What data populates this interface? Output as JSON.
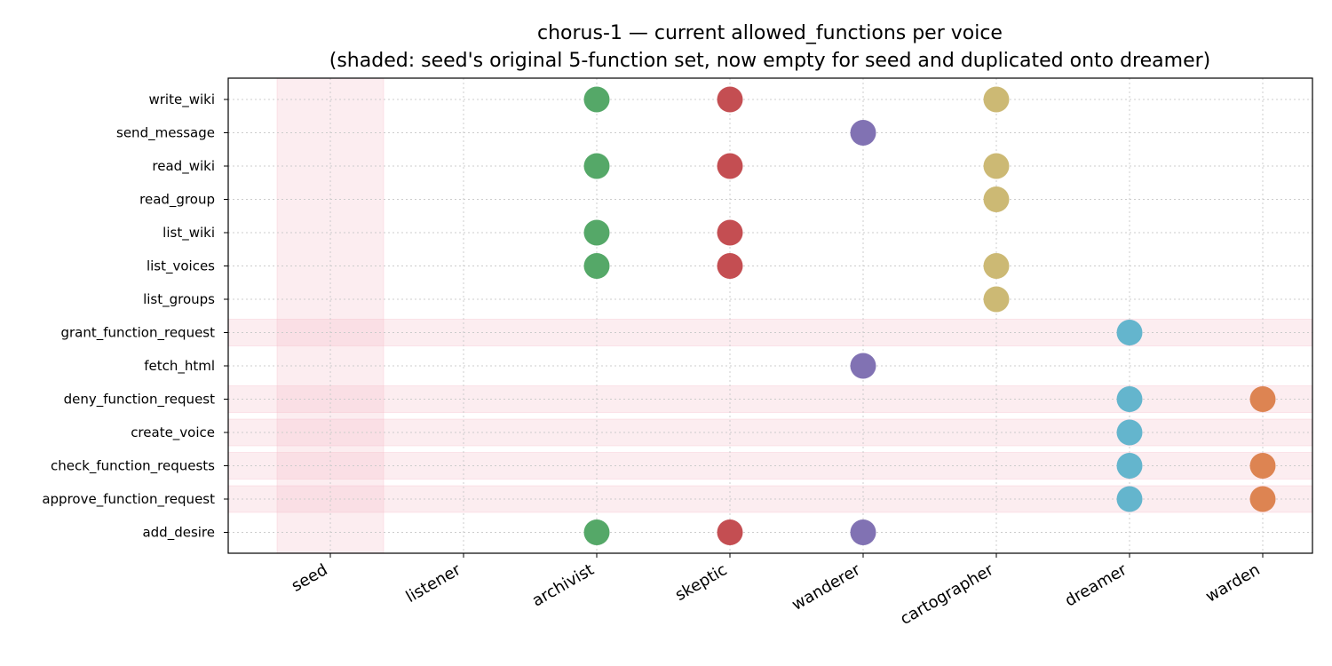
{
  "chart_data": {
    "type": "scatter",
    "title": "chorus-1 — current allowed_functions per voice",
    "subtitle": "(shaded: seed's original 5-function set, now empty for seed and duplicated onto dreamer)",
    "xlabel": "",
    "ylabel": "",
    "x_categories": [
      "seed",
      "listener",
      "archivist",
      "skeptic",
      "wanderer",
      "cartographer",
      "dreamer",
      "warden"
    ],
    "y_categories": [
      "write_wiki",
      "send_message",
      "read_wiki",
      "read_group",
      "list_wiki",
      "list_voices",
      "list_groups",
      "grant_function_request",
      "fetch_html",
      "deny_function_request",
      "create_voice",
      "check_function_requests",
      "approve_function_request",
      "add_desire"
    ],
    "grid": true,
    "shaded_column": "seed",
    "shaded_rows": [
      "grant_function_request",
      "deny_function_request",
      "create_voice",
      "check_function_requests",
      "approve_function_request"
    ],
    "shade_color": "#f4b6c2",
    "series": [
      {
        "voice": "archivist",
        "color": "#55a868",
        "functions": [
          "write_wiki",
          "read_wiki",
          "list_wiki",
          "list_voices",
          "add_desire"
        ]
      },
      {
        "voice": "skeptic",
        "color": "#c44e52",
        "functions": [
          "write_wiki",
          "read_wiki",
          "list_wiki",
          "list_voices",
          "add_desire"
        ]
      },
      {
        "voice": "wanderer",
        "color": "#8172b3",
        "functions": [
          "send_message",
          "fetch_html",
          "add_desire"
        ]
      },
      {
        "voice": "cartographer",
        "color": "#ccb974",
        "functions": [
          "write_wiki",
          "read_wiki",
          "read_group",
          "list_voices",
          "list_groups"
        ]
      },
      {
        "voice": "dreamer",
        "color": "#64b5cd",
        "functions": [
          "grant_function_request",
          "deny_function_request",
          "create_voice",
          "check_function_requests",
          "approve_function_request"
        ]
      },
      {
        "voice": "warden",
        "color": "#dd8452",
        "functions": [
          "deny_function_request",
          "check_function_requests",
          "approve_function_request"
        ]
      }
    ]
  }
}
